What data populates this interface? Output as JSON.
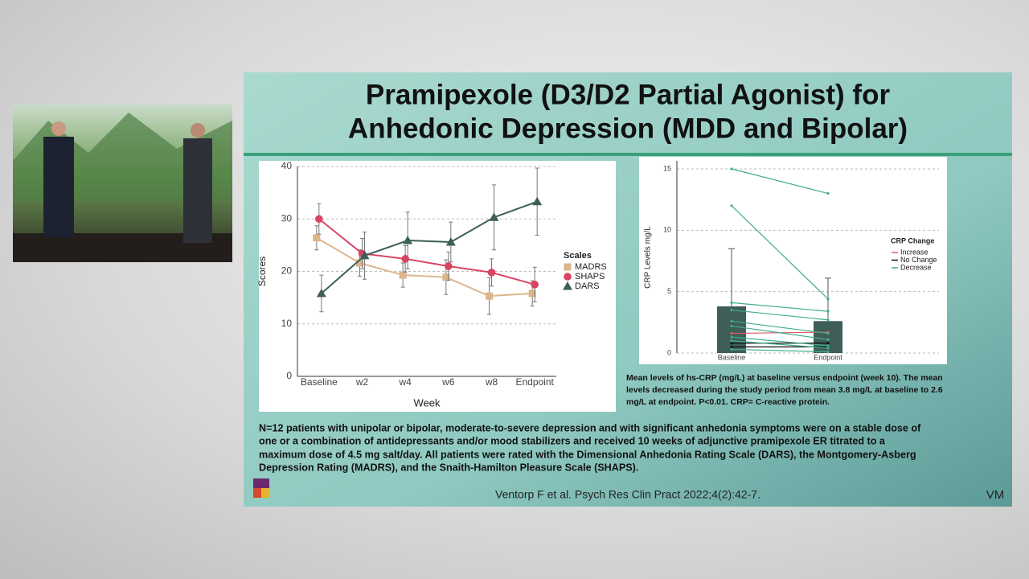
{
  "slide": {
    "title_lines": [
      "Pramipexole (D3/D2 Partial Agonist) for",
      "Anhedonic Depression (MDD and Bipolar)"
    ],
    "caption_lines": [
      "Mean levels of hs-CRP (mg/L) at baseline versus endpoint (week 10). The mean",
      "levels decreased during the study period from mean 3.8 mg/L at baseline to 2.6",
      "mg/L at endpoint. P<0.01. CRP= C-reactive protein."
    ],
    "body_lines": [
      "N=12 patients with unipolar or bipolar, moderate-to-severe depression and with significant anhedonia symptoms were on a stable dose of",
      "one or a combination of antidepressants and/or mood stabilizers and received 10 weeks of adjunctive pramipexole ER titrated to a",
      "maximum dose of 4.5 mg salt/day. All patients were rated with the Dimensional Anhedonia Rating Scale (DARS), the Montgomery-Asberg",
      "Depression Rating (MADRS), and the Snaith-Hamilton Pleasure Scale (SHAPS)."
    ],
    "citation": "Ventorp F et al. Psych Res Clin Pract 2022;4(2):42-7.",
    "footer_mark": "VM"
  },
  "chart_data": [
    {
      "type": "line",
      "x_label": "Week",
      "y_label": "Scores",
      "legend_title": "Scales",
      "categories": [
        "Baseline",
        "w2",
        "w4",
        "w6",
        "w8",
        "Endpoint"
      ],
      "ylim": [
        0,
        40
      ],
      "yticks": [
        0,
        10,
        20,
        30,
        40
      ],
      "grid": true,
      "series": [
        {
          "name": "MADRS",
          "color": "#dcb68a",
          "marker": "square",
          "values": [
            26.4,
            21.6,
            19.3,
            18.9,
            15.3,
            15.8
          ],
          "errors": [
            2.3,
            2.5,
            2.3,
            3.3,
            3.5,
            2.4
          ]
        },
        {
          "name": "SHAPS",
          "color": "#d94463",
          "marker": "circle",
          "values": [
            30.0,
            23.4,
            22.4,
            21.0,
            19.8,
            17.5
          ],
          "errors": [
            2.9,
            2.9,
            2.5,
            2.7,
            2.6,
            3.3
          ]
        },
        {
          "name": "DARS",
          "color": "#3f5e58",
          "marker": "triangle",
          "values": [
            15.8,
            23.0,
            25.9,
            25.6,
            30.3,
            33.3
          ],
          "errors": [
            3.5,
            4.5,
            5.4,
            3.8,
            6.2,
            6.4
          ]
        }
      ]
    },
    {
      "type": "bar_paired",
      "y_label": "CRP Levels mg/L",
      "legend_title": "CRP Change",
      "categories": [
        "Baseline",
        "Endpoint"
      ],
      "values": [
        3.8,
        2.6
      ],
      "errors": [
        4.7,
        3.5
      ],
      "color": "#3f5e58",
      "ylim": [
        0,
        15
      ],
      "yticks": [
        0,
        5,
        10,
        15
      ],
      "grid": true,
      "groups": [
        {
          "name": "Increase",
          "color": "#e05a6a",
          "pairs": [
            [
              1.6,
              1.7
            ]
          ]
        },
        {
          "name": "No Change",
          "color": "#111111",
          "pairs": [
            [
              0.8,
              0.8
            ],
            [
              0.5,
              0.5
            ]
          ]
        },
        {
          "name": "Decrease",
          "color": "#3fae8c",
          "pairs": [
            [
              15.0,
              13.0
            ],
            [
              12.0,
              4.4
            ],
            [
              4.1,
              3.4
            ],
            [
              3.5,
              2.7
            ],
            [
              2.6,
              1.6
            ],
            [
              2.2,
              1.1
            ],
            [
              1.3,
              0.6
            ],
            [
              1.0,
              0.4
            ],
            [
              0.3,
              0.1
            ]
          ]
        }
      ]
    }
  ]
}
